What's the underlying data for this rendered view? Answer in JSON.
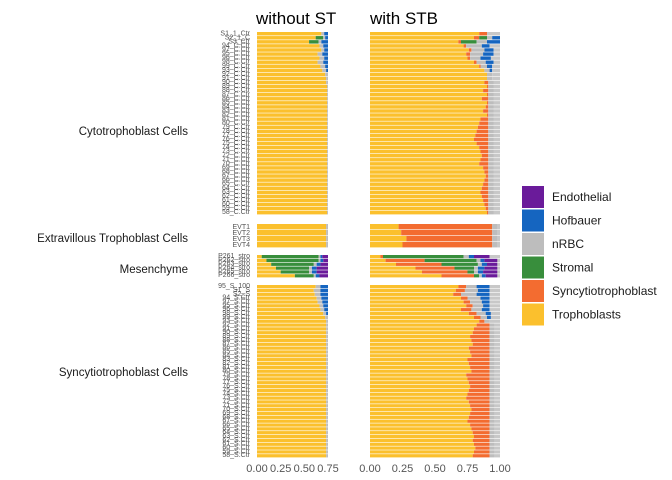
{
  "chart_data": {
    "type": "bar",
    "orientation": "horizontal",
    "stacked": true,
    "panels": [
      {
        "title": "without ST",
        "xlim": [
          0,
          0.75
        ],
        "xticks": [
          "0.00",
          "0.25",
          "0.50",
          "0.75"
        ]
      },
      {
        "title": "with STB",
        "xlim": [
          0,
          1.0
        ],
        "xticks": [
          "0.00",
          "0.25",
          "0.50",
          "0.75",
          "1.00"
        ]
      }
    ],
    "groups": [
      {
        "name": "Cytotrophoblast Cells",
        "row_labels": [
          "S1_1_Ctr",
          "S2_1_C",
          "S3_Ctr",
          "94_C.Ctr",
          "97_C.Ctr",
          "95_C.Ctr",
          "96_C.Ctr",
          "98_C.Ctr",
          "99_C.Ctr",
          "93_C.Ctr",
          "92_C.Ctr",
          "91_C.Ctr",
          "90_C.Ctr",
          "89_C.Ctr",
          "88_C.Ctr",
          "87_C.Ctr",
          "86_C.Ctr",
          "85_C.Ctr",
          "84_C.Ctr",
          "83_C.Ctr",
          "82_C.Ctr",
          "81_C.Ctr",
          "80_C.Ctr",
          "79_C.Ctr",
          "78_C.Ctr",
          "77_C.Ctr",
          "76_C.Ctr",
          "75_C.Ctr",
          "74_C.Ctr",
          "73_C.Ctr",
          "72_C.Ctr",
          "71_C.Ctr",
          "70_C.Ctr",
          "69_C.Ctr",
          "68_C.Ctr",
          "67_C.Ctr",
          "66_C.Ctr",
          "65_C.Ctr",
          "64_C.Ctr",
          "63_C.Ctr",
          "62_C.Ctr",
          "61_C.Ctr",
          "60_C.Ctr",
          "59_C.Ctr",
          "58_C.Ctr"
        ]
      },
      {
        "name": "Extravillous Trophoblast Cells",
        "row_labels": [
          "EVT1",
          "EVT2",
          "EVT3",
          "EVT4"
        ]
      },
      {
        "name": "Mesenchyme",
        "row_labels": [
          "P261_stro",
          "P262_stro",
          "P263_stro",
          "P264_stro",
          "P265_stro",
          "P266_stro"
        ]
      },
      {
        "name": "Syncytiotrophoblast Cells",
        "row_labels": [
          "95_S_100",
          "S1_S",
          "S2_S",
          "94_S.Ctr",
          "97_S.Ctr",
          "95_S.Ctr",
          "96_S.Ctr",
          "98_S.Ctr",
          "99_S.Ctr",
          "93_S.Ctr",
          "92_S.Ctr",
          "91_S.Ctr",
          "90_S.Ctr",
          "89_S.Ctr",
          "88_S.Ctr",
          "87_S.Ctr",
          "86_S.Ctr",
          "85_S.Ctr",
          "84_S.Ctr",
          "83_S.Ctr",
          "82_S.Ctr",
          "81_S.Ctr",
          "80_S.Ctr",
          "79_S.Ctr",
          "78_S.Ctr",
          "77_S.Ctr",
          "76_S.Ctr",
          "75_S.Ctr",
          "74_S.Ctr",
          "73_S.Ctr",
          "72_S.Ctr",
          "71_S.Ctr",
          "70_S.Ctr",
          "69_S.Ctr",
          "68_S.Ctr",
          "67_S.Ctr",
          "66_S.Ctr",
          "65_S.Ctr",
          "64_S.Ctr",
          "63_S.Ctr",
          "62_S.Ctr",
          "61_S.Ctr",
          "60_S.Ctr",
          "59_S.Ctr",
          "58_S.Ctr"
        ]
      }
    ],
    "series_order": [
      "Trophoblasts",
      "Syncytiotrophoblast",
      "Stromal",
      "nRBC",
      "Hofbauer",
      "Endothelial"
    ],
    "colors": {
      "Endothelial": "#6a1b9a",
      "Hofbauer": "#1565c0",
      "nRBC": "#bdbdbd",
      "Stromal": "#388e3c",
      "Syncytiotrophoblast": "#f36c30",
      "Trophoblasts": "#fbc02d"
    },
    "legend": {
      "position": "right",
      "entries": [
        "Endothelial",
        "Hofbauer",
        "nRBC",
        "Stromal",
        "Syncytiotrophoblast",
        "Trophoblasts"
      ]
    },
    "panel_values": {
      "without": {
        "Cytotrophoblast Cells": [
          {
            "Trophoblasts": 0.68,
            "Stromal": 0.0,
            "nRBC": 0.03,
            "Hofbauer": 0.04
          },
          {
            "Trophoblasts": 0.62,
            "Stromal": 0.08,
            "nRBC": 0.02,
            "Hofbauer": 0.03
          },
          {
            "Trophoblasts": 0.55,
            "Stromal": 0.1,
            "nRBC": 0.03,
            "Hofbauer": 0.07
          },
          {
            "Trophoblasts": 0.66,
            "Stromal": 0.0,
            "nRBC": 0.04,
            "Hofbauer": 0.05
          },
          {
            "Trophoblasts": 0.68,
            "Stromal": 0.0,
            "nRBC": 0.03,
            "Hofbauer": 0.04
          },
          {
            "Trophoblasts": 0.64,
            "Stromal": 0.0,
            "nRBC": 0.05,
            "Hofbauer": 0.06
          },
          {
            "Trophoblasts": 0.66,
            "Stromal": 0.0,
            "nRBC": 0.05,
            "Hofbauer": 0.04
          },
          {
            "Trophoblasts": 0.64,
            "Stromal": 0.0,
            "nRBC": 0.06,
            "Hofbauer": 0.05
          },
          {
            "Trophoblasts": 0.67,
            "Stromal": 0.0,
            "nRBC": 0.05,
            "Hofbauer": 0.03
          },
          {
            "Trophoblasts": 0.69,
            "Stromal": 0.0,
            "nRBC": 0.04,
            "Hofbauer": 0.02
          },
          {
            "Trophoblasts": 0.72,
            "Stromal": 0.0,
            "nRBC": 0.03,
            "Hofbauer": 0.0
          },
          {
            "Trophoblasts": 0.73,
            "Stromal": 0.0,
            "nRBC": 0.02,
            "Hofbauer": 0.0
          },
          {
            "Trophoblasts": 0.73,
            "Stromal": 0.0,
            "nRBC": 0.02,
            "Hofbauer": 0.0
          },
          {
            "Trophoblasts": 0.74,
            "Stromal": 0.0,
            "nRBC": 0.01,
            "Hofbauer": 0.0
          }
        ],
        "Cytotrophoblast Cells_fill": {
          "Trophoblasts": 0.74,
          "nRBC": 0.01
        },
        "Extravillous Trophoblast Cells": [
          {
            "Trophoblasts": 0.73,
            "nRBC": 0.02
          },
          {
            "Trophoblasts": 0.73,
            "nRBC": 0.02
          },
          {
            "Trophoblasts": 0.73,
            "nRBC": 0.02
          },
          {
            "Trophoblasts": 0.73,
            "nRBC": 0.02
          }
        ],
        "Mesenchyme": [
          {
            "Trophoblasts": 0.05,
            "Stromal": 0.6,
            "nRBC": 0.02,
            "Hofbauer": 0.02,
            "Endothelial": 0.06
          },
          {
            "Trophoblasts": 0.1,
            "Stromal": 0.55,
            "nRBC": 0.02,
            "Hofbauer": 0.03,
            "Endothelial": 0.05
          },
          {
            "Trophoblasts": 0.15,
            "Stromal": 0.45,
            "nRBC": 0.03,
            "Hofbauer": 0.04,
            "Endothelial": 0.08
          },
          {
            "Trophoblasts": 0.2,
            "Stromal": 0.35,
            "nRBC": 0.03,
            "Hofbauer": 0.05,
            "Endothelial": 0.12
          },
          {
            "Trophoblasts": 0.25,
            "Stromal": 0.3,
            "nRBC": 0.03,
            "Hofbauer": 0.05,
            "Endothelial": 0.12
          },
          {
            "Trophoblasts": 0.4,
            "Stromal": 0.2,
            "nRBC": 0.02,
            "Hofbauer": 0.04,
            "Endothelial": 0.09
          }
        ],
        "Syncytiotrophoblast Cells": [
          {
            "Trophoblasts": 0.62,
            "nRBC": 0.05,
            "Hofbauer": 0.08
          },
          {
            "Trophoblasts": 0.6,
            "nRBC": 0.07,
            "Hofbauer": 0.08
          },
          {
            "Trophoblasts": 0.61,
            "nRBC": 0.06,
            "Hofbauer": 0.08
          },
          {
            "Trophoblasts": 0.63,
            "nRBC": 0.05,
            "Hofbauer": 0.07
          },
          {
            "Trophoblasts": 0.64,
            "nRBC": 0.05,
            "Hofbauer": 0.06
          },
          {
            "Trophoblasts": 0.66,
            "nRBC": 0.04,
            "Hofbauer": 0.05
          },
          {
            "Trophoblasts": 0.67,
            "nRBC": 0.04,
            "Hofbauer": 0.04
          },
          {
            "Trophoblasts": 0.7,
            "nRBC": 0.03,
            "Hofbauer": 0.02
          },
          {
            "Trophoblasts": 0.72,
            "nRBC": 0.03,
            "Hofbauer": 0.0
          }
        ],
        "Syncytiotrophoblast Cells_fill": {
          "Trophoblasts": 0.73,
          "nRBC": 0.02
        }
      },
      "with": {
        "Cytotrophoblast Cells": [
          {
            "Trophoblasts": 0.84,
            "Syncytiotrophoblast": 0.06,
            "nRBC": 0.0,
            "Hofbauer": 0.0,
            "Stromal": 0.0
          },
          {
            "Trophoblasts": 0.8,
            "Syncytiotrophoblast": 0.04,
            "Stromal": 0.06,
            "nRBC": 0.04,
            "Hofbauer": 0.06
          },
          {
            "Trophoblasts": 0.68,
            "Syncytiotrophoblast": 0.02,
            "Stromal": 0.12,
            "nRBC": 0.08,
            "Hofbauer": 0.1
          },
          {
            "Trophoblasts": 0.72,
            "Syncytiotrophoblast": 0.02,
            "Stromal": 0.0,
            "nRBC": 0.12,
            "Hofbauer": 0.06
          },
          {
            "Trophoblasts": 0.76,
            "Syncytiotrophoblast": 0.02,
            "Stromal": 0.0,
            "nRBC": 0.1,
            "Hofbauer": 0.07
          },
          {
            "Trophoblasts": 0.74,
            "Syncytiotrophoblast": 0.03,
            "Stromal": 0.0,
            "nRBC": 0.1,
            "Hofbauer": 0.08
          },
          {
            "Trophoblasts": 0.75,
            "Syncytiotrophoblast": 0.02,
            "Stromal": 0.0,
            "nRBC": 0.08,
            "Hofbauer": 0.08
          },
          {
            "Trophoblasts": 0.8,
            "Syncytiotrophoblast": 0.02,
            "Stromal": 0.0,
            "nRBC": 0.07,
            "Hofbauer": 0.06
          },
          {
            "Trophoblasts": 0.84,
            "Syncytiotrophoblast": 0.01,
            "Stromal": 0.0,
            "nRBC": 0.05,
            "Hofbauer": 0.04
          },
          {
            "Trophoblasts": 0.88,
            "Syncytiotrophoblast": 0.0,
            "Stromal": 0.0,
            "nRBC": 0.04,
            "Hofbauer": 0.02
          },
          {
            "Trophoblasts": 0.9,
            "Syncytiotrophoblast": 0.0,
            "Stromal": 0.0,
            "nRBC": 0.04,
            "Hofbauer": 0.0
          },
          {
            "Trophoblasts": 0.9,
            "Syncytiotrophoblast": 0.0,
            "Stromal": 0.0,
            "nRBC": 0.04,
            "Hofbauer": 0.0
          }
        ],
        "Cytotrophoblast Cells_fill": {
          "Trophoblasts": 0.9,
          "Syncytiotrophoblast": 0.01,
          "nRBC": 0.04
        },
        "Cytotrophoblast Cells_bumps": [
          0.02,
          0.0,
          0.03,
          0.0,
          0.04,
          0.0,
          0.01,
          0.03,
          0.0,
          0.05,
          0.06,
          0.07,
          0.08,
          0.09,
          0.1,
          0.08,
          0.06,
          0.05,
          0.04,
          0.05,
          0.06,
          0.03,
          0.02,
          0.01,
          0.02,
          0.03,
          0.04,
          0.05,
          0.04,
          0.03,
          0.02,
          0.01,
          0.0
        ],
        "Extravillous Trophoblast Cells": [
          {
            "Trophoblasts": 0.22,
            "Syncytiotrophoblast": 0.72,
            "nRBC": 0.04
          },
          {
            "Trophoblasts": 0.24,
            "Syncytiotrophoblast": 0.7,
            "nRBC": 0.04
          },
          {
            "Trophoblasts": 0.28,
            "Syncytiotrophoblast": 0.66,
            "nRBC": 0.04
          },
          {
            "Trophoblasts": 0.25,
            "Syncytiotrophoblast": 0.69,
            "nRBC": 0.04
          }
        ],
        "Mesenchyme": [
          {
            "Trophoblasts": 0.08,
            "Syncytiotrophoblast": 0.02,
            "Stromal": 0.62,
            "nRBC": 0.04,
            "Hofbauer": 0.04,
            "Endothelial": 0.12
          },
          {
            "Trophoblasts": 0.12,
            "Syncytiotrophoblast": 0.3,
            "Stromal": 0.4,
            "nRBC": 0.03,
            "Hofbauer": 0.03,
            "Endothelial": 0.1
          },
          {
            "Trophoblasts": 0.2,
            "Syncytiotrophoblast": 0.35,
            "Stromal": 0.28,
            "nRBC": 0.03,
            "Hofbauer": 0.04,
            "Endothelial": 0.08
          },
          {
            "Trophoblasts": 0.35,
            "Syncytiotrophoblast": 0.3,
            "Stromal": 0.15,
            "nRBC": 0.03,
            "Hofbauer": 0.05,
            "Endothelial": 0.1
          },
          {
            "Trophoblasts": 0.4,
            "Syncytiotrophoblast": 0.35,
            "Stromal": 0.05,
            "nRBC": 0.03,
            "Hofbauer": 0.04,
            "Endothelial": 0.11
          },
          {
            "Trophoblasts": 0.55,
            "Syncytiotrophoblast": 0.25,
            "Stromal": 0.04,
            "nRBC": 0.02,
            "Hofbauer": 0.03,
            "Endothelial": 0.09
          }
        ],
        "Syncytiotrophoblast Cells": [
          {
            "Trophoblasts": 0.68,
            "Syncytiotrophoblast": 0.06,
            "nRBC": 0.08,
            "Hofbauer": 0.1
          },
          {
            "Trophoblasts": 0.66,
            "Syncytiotrophoblast": 0.07,
            "nRBC": 0.1,
            "Hofbauer": 0.09
          },
          {
            "Trophoblasts": 0.64,
            "Syncytiotrophoblast": 0.06,
            "nRBC": 0.12,
            "Hofbauer": 0.1
          },
          {
            "Trophoblasts": 0.7,
            "Syncytiotrophoblast": 0.05,
            "nRBC": 0.1,
            "Hofbauer": 0.07
          },
          {
            "Trophoblasts": 0.72,
            "Syncytiotrophoblast": 0.05,
            "nRBC": 0.09,
            "Hofbauer": 0.06
          },
          {
            "Trophoblasts": 0.74,
            "Syncytiotrophoblast": 0.05,
            "nRBC": 0.08,
            "Hofbauer": 0.05
          },
          {
            "Trophoblasts": 0.7,
            "Syncytiotrophoblast": 0.08,
            "nRBC": 0.08,
            "Hofbauer": 0.06
          },
          {
            "Trophoblasts": 0.76,
            "Syncytiotrophoblast": 0.06,
            "nRBC": 0.07,
            "Hofbauer": 0.04
          },
          {
            "Trophoblasts": 0.8,
            "Syncytiotrophoblast": 0.05,
            "nRBC": 0.05,
            "Hofbauer": 0.03
          },
          {
            "Trophoblasts": 0.84,
            "Syncytiotrophoblast": 0.04,
            "nRBC": 0.04,
            "Hofbauer": 0.0
          }
        ],
        "Syncytiotrophoblast Cells_fill": {
          "Trophoblasts": 0.82,
          "Syncytiotrophoblast": 0.1,
          "nRBC": 0.04
        },
        "Syncytiotrophoblast Cells_bumps": [
          0.0,
          0.02,
          0.03,
          0.05,
          0.04,
          0.03,
          0.06,
          0.05,
          0.04,
          0.07,
          0.06,
          0.05,
          0.04,
          0.08,
          0.07,
          0.06,
          0.05,
          0.06,
          0.07,
          0.08,
          0.06,
          0.05,
          0.04,
          0.05,
          0.06,
          0.07,
          0.05,
          0.04,
          0.03,
          0.02,
          0.03,
          0.02,
          0.01,
          0.02,
          0.03
        ]
      }
    }
  }
}
